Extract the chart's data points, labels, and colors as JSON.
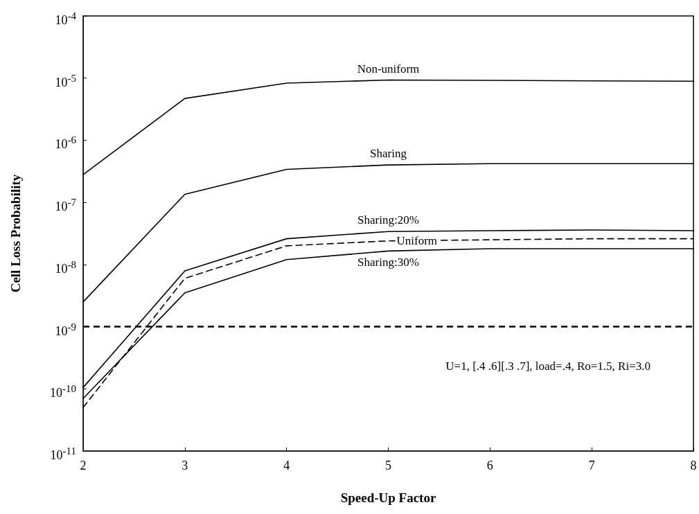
{
  "chart_data": {
    "type": "line",
    "xlabel": "Speed-Up Factor",
    "ylabel": "Cell Loss Probability",
    "x": [
      2,
      3,
      4,
      5,
      6,
      7,
      8
    ],
    "series": [
      {
        "name": "Non-uniform",
        "color": "#000000",
        "values": [
          2.8e-07,
          4.7e-06,
          8.3e-06,
          9.3e-06,
          9.2e-06,
          9e-06,
          8.9e-06
        ]
      },
      {
        "name": "Sharing",
        "color": "#000000",
        "values": [
          2.5e-09,
          1.35e-07,
          3.4e-07,
          4e-07,
          4.2e-07,
          4.2e-07,
          4.2e-07
        ]
      },
      {
        "name": "Sharing:20%",
        "color": "#000000",
        "values": [
          1.05e-10,
          7.9e-09,
          2.6e-08,
          3.4e-08,
          3.5e-08,
          3.6e-08,
          3.5e-08
        ]
      },
      {
        "name": "Uniform",
        "color": "#000000",
        "line_style": "dashed",
        "values": [
          5e-11,
          6e-09,
          2e-08,
          2.4e-08,
          2.5e-08,
          2.6e-08,
          2.6e-08
        ]
      },
      {
        "name": "Sharing:30%",
        "color": "#000000",
        "values": [
          7e-11,
          3.5e-09,
          1.2e-08,
          1.65e-08,
          1.8e-08,
          1.8e-08,
          1.8e-08
        ]
      }
    ],
    "ref_lines": [
      {
        "axis": "y",
        "value": 1e-09,
        "label": null,
        "color": "#000000",
        "line_style": "dashed"
      }
    ],
    "annotations": [
      "U=1, [.4 .6][.3 .7], load=.4, Ro=1.5, Ri=3.0"
    ],
    "log": "y",
    "grid": false,
    "legend": false,
    "marker": "none",
    "line_style": "solid",
    "xlim": [
      2,
      8
    ],
    "xticks": [
      2,
      3,
      4,
      5,
      6,
      7,
      8
    ],
    "ylim": [
      1e-11,
      0.0001
    ],
    "yticks": [
      {
        "value": 1e-11,
        "label": "10$^{-11}$"
      },
      {
        "value": 1e-10,
        "label": "10$^{-10}$"
      },
      {
        "value": 1e-09,
        "label": "10$^{-9}$"
      },
      {
        "value": 1e-08,
        "label": "10$^{-8}$"
      },
      {
        "value": 1e-07,
        "label": "10$^{-7}$"
      },
      {
        "value": 1e-06,
        "label": "10$^{-6}$"
      },
      {
        "value": 1e-05,
        "label": "10$^{-5}$"
      },
      {
        "value": 0.0001,
        "label": "10$^{-4}$"
      }
    ]
  }
}
